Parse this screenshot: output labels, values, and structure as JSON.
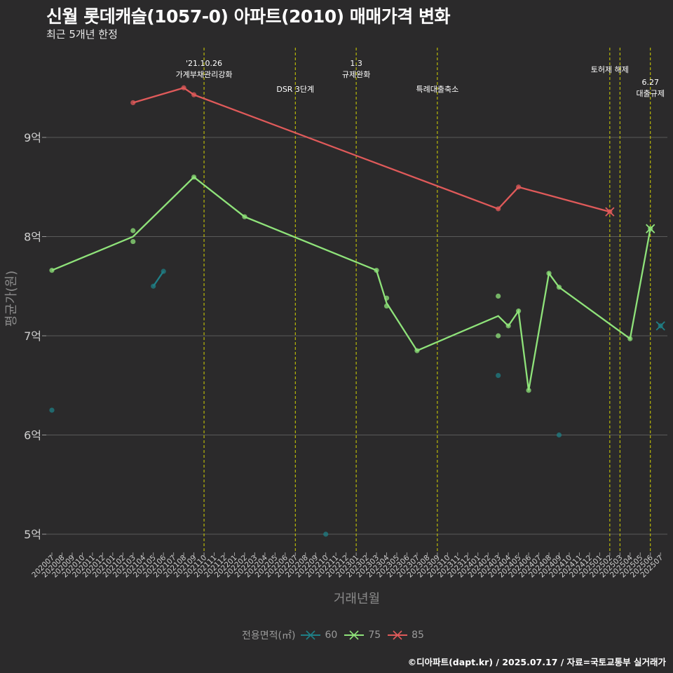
{
  "title": "신월 롯데캐슬(1057-0) 아파트(2010) 매매가격 변화",
  "subtitle": "최근 5개년 한정",
  "caption": "©디아파트(dapt.kr) / 2025.07.17 / 자료=국토교통부 실거래가",
  "colors": {
    "background": "#2b2a2b",
    "grid": "#5a5a5a",
    "vline": "#d4d400",
    "s60": "#1f7f86",
    "s75": "#8fe37a",
    "s85": "#e05a5a"
  },
  "chart_data": {
    "type": "line",
    "xlabel": "거래년월",
    "ylabel": "평균가(원)",
    "x_ticks": [
      "202007",
      "202008",
      "202009",
      "202010",
      "202011",
      "202012",
      "202101",
      "202102",
      "202103",
      "202104",
      "202105",
      "202106",
      "202107",
      "202108",
      "202109",
      "202110",
      "202111",
      "202112",
      "202201",
      "202202",
      "202203",
      "202204",
      "202205",
      "202206",
      "202207",
      "202208",
      "202209",
      "202210",
      "202211",
      "202212",
      "202301",
      "202302",
      "202303",
      "202304",
      "202305",
      "202306",
      "202307",
      "202308",
      "202309",
      "202310",
      "202311",
      "202312",
      "202401",
      "202402",
      "202403",
      "202404",
      "202405",
      "202406",
      "202407",
      "202408",
      "202409",
      "202410",
      "202411",
      "202412",
      "202501",
      "202502",
      "202503",
      "202504",
      "202505",
      "202506",
      "202507"
    ],
    "y_ticks": [
      {
        "value": 5,
        "label": "5억"
      },
      {
        "value": 6,
        "label": "6억"
      },
      {
        "value": 7,
        "label": "7억"
      },
      {
        "value": 8,
        "label": "8억"
      },
      {
        "value": 9,
        "label": "9억"
      }
    ],
    "ylim": [
      4.75,
      9.8
    ],
    "grid": true,
    "legend_title": "전용면적(㎡)",
    "legend_position": "bottom",
    "series": [
      {
        "name": "60",
        "color": "#1f7f86",
        "points": [
          {
            "x": "202007",
            "y": 6.25
          },
          {
            "x": "202105",
            "y": 7.5
          },
          {
            "x": "202106",
            "y": 7.65
          },
          {
            "x": "202210",
            "y": 5.0
          },
          {
            "x": "202403",
            "y": 6.6
          },
          {
            "x": "202409",
            "y": 6.0
          },
          {
            "x": "202507",
            "y": 7.1
          }
        ],
        "line": [
          {
            "x": "202105",
            "y": 7.5
          },
          {
            "x": "202106",
            "y": 7.65
          }
        ],
        "last": {
          "x": "202507",
          "y": 7.1
        }
      },
      {
        "name": "75",
        "color": "#8fe37a",
        "points": [
          {
            "x": "202007",
            "y": 7.66
          },
          {
            "x": "202103",
            "y": 8.06
          },
          {
            "x": "202103",
            "y": 7.95
          },
          {
            "x": "202109",
            "y": 8.6
          },
          {
            "x": "202202",
            "y": 8.2
          },
          {
            "x": "202303",
            "y": 7.66
          },
          {
            "x": "202304",
            "y": 7.38
          },
          {
            "x": "202304",
            "y": 7.3
          },
          {
            "x": "202307",
            "y": 6.85
          },
          {
            "x": "202403",
            "y": 7.4
          },
          {
            "x": "202403",
            "y": 7.0
          },
          {
            "x": "202404",
            "y": 7.1
          },
          {
            "x": "202405",
            "y": 7.25
          },
          {
            "x": "202406",
            "y": 6.45
          },
          {
            "x": "202408",
            "y": 7.63
          },
          {
            "x": "202409",
            "y": 7.49
          },
          {
            "x": "202504",
            "y": 6.97
          },
          {
            "x": "202506",
            "y": 8.08
          }
        ],
        "line": [
          {
            "x": "202007",
            "y": 7.66
          },
          {
            "x": "202103",
            "y": 8.0
          },
          {
            "x": "202109",
            "y": 8.6
          },
          {
            "x": "202202",
            "y": 8.2
          },
          {
            "x": "202303",
            "y": 7.66
          },
          {
            "x": "202304",
            "y": 7.33
          },
          {
            "x": "202307",
            "y": 6.85
          },
          {
            "x": "202403",
            "y": 7.2
          },
          {
            "x": "202404",
            "y": 7.1
          },
          {
            "x": "202405",
            "y": 7.25
          },
          {
            "x": "202406",
            "y": 6.45
          },
          {
            "x": "202408",
            "y": 7.63
          },
          {
            "x": "202409",
            "y": 7.49
          },
          {
            "x": "202504",
            "y": 6.97
          },
          {
            "x": "202506",
            "y": 8.08
          }
        ],
        "last": {
          "x": "202506",
          "y": 8.08
        }
      },
      {
        "name": "85",
        "color": "#e05a5a",
        "points": [
          {
            "x": "202103",
            "y": 9.35
          },
          {
            "x": "202108",
            "y": 9.5
          },
          {
            "x": "202109",
            "y": 9.43
          },
          {
            "x": "202403",
            "y": 8.28
          },
          {
            "x": "202405",
            "y": 8.5
          },
          {
            "x": "202502",
            "y": 8.25
          }
        ],
        "line": [
          {
            "x": "202103",
            "y": 9.35
          },
          {
            "x": "202108",
            "y": 9.5
          },
          {
            "x": "202109",
            "y": 9.43
          },
          {
            "x": "202403",
            "y": 8.28
          },
          {
            "x": "202405",
            "y": 8.5
          },
          {
            "x": "202502",
            "y": 8.25
          }
        ],
        "last": {
          "x": "202502",
          "y": 8.25
        }
      }
    ],
    "events": [
      {
        "x": "202110",
        "label": "'21.10.26\n가계부채관리강화",
        "row": "top"
      },
      {
        "x": "202207",
        "label": "DSR 3단계",
        "row": "low"
      },
      {
        "x": "202301",
        "label": "1.3\n규제완화",
        "row": "top"
      },
      {
        "x": "202309",
        "label": "특례대출축소",
        "row": "low"
      },
      {
        "x": "202502",
        "label": "토허제 해제",
        "row": "mid"
      },
      {
        "x": "202503",
        "label": "",
        "row": "none"
      },
      {
        "x": "202506",
        "label": "6.27\n대출규제",
        "row": "right"
      }
    ]
  }
}
